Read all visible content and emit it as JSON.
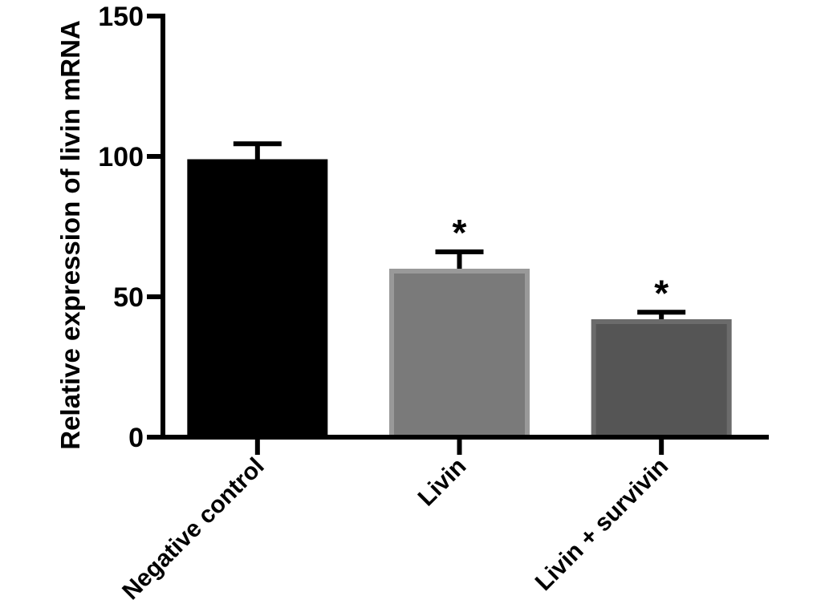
{
  "chart_data": {
    "type": "bar",
    "title": "",
    "xlabel": "",
    "ylabel": "Relative expression of livin mRNA",
    "ylim": [
      0,
      150
    ],
    "yticks": [
      "0",
      "50",
      "100",
      "150"
    ],
    "categories": [
      "Negative control",
      "Livin",
      "Livin + survivin"
    ],
    "values": [
      99,
      60,
      42
    ],
    "errors": [
      5.5,
      6,
      2.5
    ],
    "significance": [
      "",
      "*",
      "*"
    ],
    "bar_colors": [
      "#000000",
      "#7a7a7a",
      "#555555"
    ],
    "bar_edge_colors": [
      "#000000",
      "#999999",
      "#6b6b6b"
    ],
    "grid": false,
    "legend": "none"
  }
}
